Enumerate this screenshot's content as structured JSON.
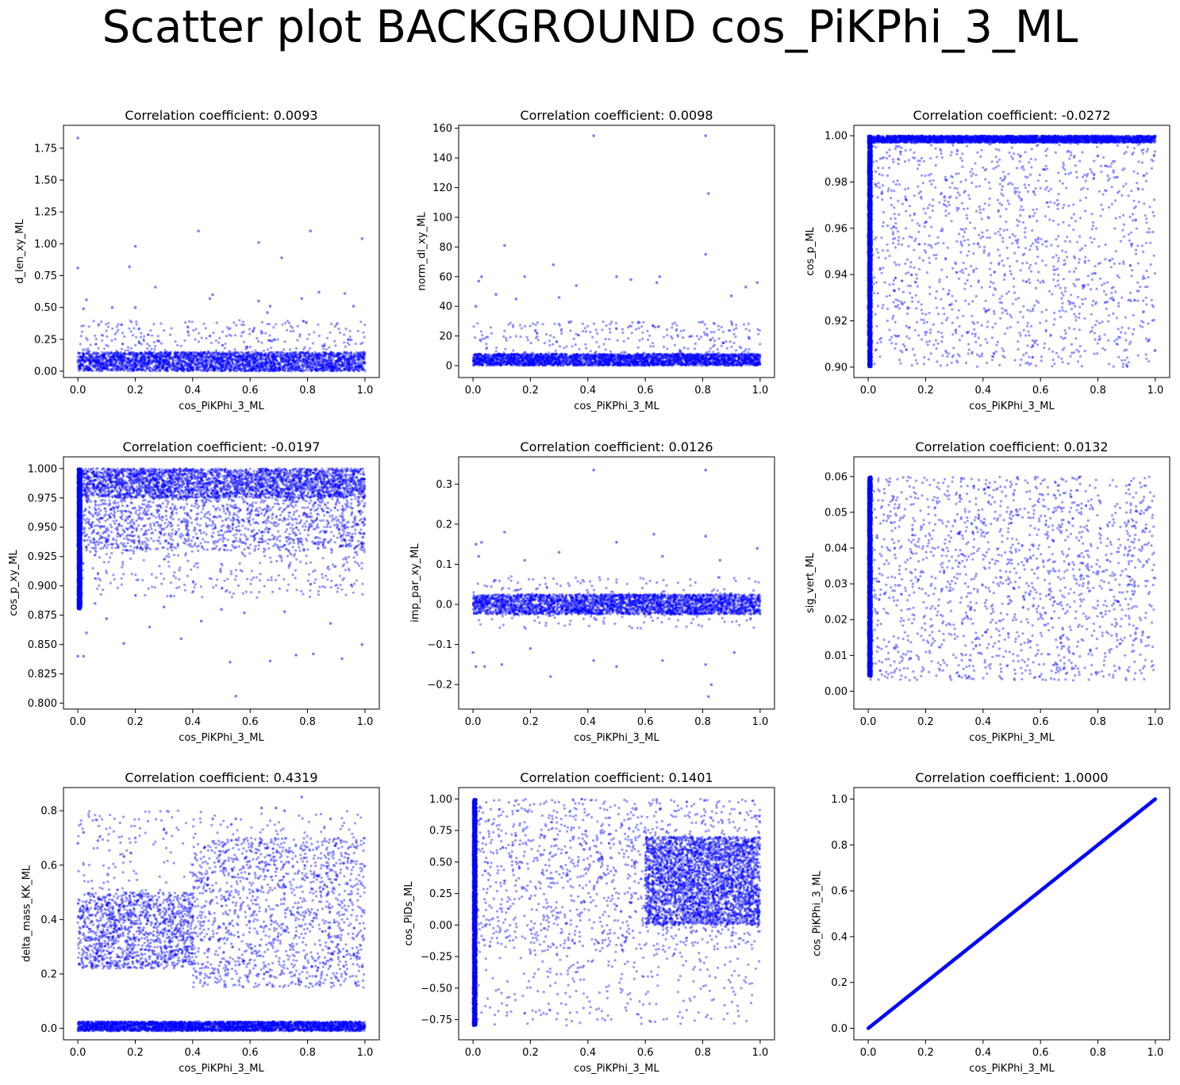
{
  "figure": {
    "title": "Scatter plot BACKGROUND cos_PiKPhi_3_ML",
    "point_color": "#0000ff",
    "point_alpha": 0.4
  },
  "chart_data": [
    {
      "type": "scatter",
      "title": "Correlation coefficient: 0.0093",
      "xlabel": "cos_PiKPhi_3_ML",
      "ylabel": "d_len_xy_ML",
      "xlim": [
        -0.05,
        1.05
      ],
      "ylim": [
        -0.05,
        1.93
      ],
      "xticks": [
        0.0,
        0.2,
        0.4,
        0.6,
        0.8,
        1.0
      ],
      "xtick_labels": [
        "0.0",
        "0.2",
        "0.4",
        "0.6",
        "0.8",
        "1.0"
      ],
      "yticks": [
        0.0,
        0.25,
        0.5,
        0.75,
        1.0,
        1.25,
        1.5,
        1.75
      ],
      "ytick_labels": [
        "0.00",
        "0.25",
        "0.50",
        "0.75",
        "1.00",
        "1.25",
        "1.50",
        "1.75"
      ],
      "bands": [
        {
          "x": [
            0.0,
            1.0
          ],
          "y": [
            0.0,
            0.15
          ],
          "density": "dense"
        },
        {
          "x": [
            0.0,
            1.0
          ],
          "y": [
            0.15,
            0.4
          ],
          "density": "sparse"
        }
      ],
      "points": [
        {
          "x": 0.0,
          "y": 1.83
        },
        {
          "x": 0.0,
          "y": 0.81
        },
        {
          "x": 0.18,
          "y": 0.82
        },
        {
          "x": 0.2,
          "y": 0.98
        },
        {
          "x": 0.42,
          "y": 1.1
        },
        {
          "x": 0.63,
          "y": 1.01
        },
        {
          "x": 0.71,
          "y": 0.89
        },
        {
          "x": 0.81,
          "y": 1.1
        },
        {
          "x": 0.99,
          "y": 1.04
        },
        {
          "x": 0.27,
          "y": 0.66
        },
        {
          "x": 0.47,
          "y": 0.6
        },
        {
          "x": 0.46,
          "y": 0.57
        },
        {
          "x": 0.63,
          "y": 0.55
        },
        {
          "x": 0.84,
          "y": 0.62
        },
        {
          "x": 0.93,
          "y": 0.61
        },
        {
          "x": 0.03,
          "y": 0.56
        },
        {
          "x": 0.02,
          "y": 0.49
        },
        {
          "x": 0.12,
          "y": 0.5
        },
        {
          "x": 0.2,
          "y": 0.5
        },
        {
          "x": 0.67,
          "y": 0.51
        },
        {
          "x": 0.78,
          "y": 0.57
        },
        {
          "x": 0.96,
          "y": 0.51
        },
        {
          "x": 0.66,
          "y": 0.46
        }
      ]
    },
    {
      "type": "scatter",
      "title": "Correlation coefficient: 0.0098",
      "xlabel": "cos_PiKPhi_3_ML",
      "ylabel": "norm_dl_xy_ML",
      "xlim": [
        -0.05,
        1.05
      ],
      "ylim": [
        -8,
        162
      ],
      "xticks": [
        0.0,
        0.2,
        0.4,
        0.6,
        0.8,
        1.0
      ],
      "xtick_labels": [
        "0.0",
        "0.2",
        "0.4",
        "0.6",
        "0.8",
        "1.0"
      ],
      "yticks": [
        0,
        20,
        40,
        60,
        80,
        100,
        120,
        140,
        160
      ],
      "ytick_labels": [
        "0",
        "20",
        "40",
        "60",
        "80",
        "100",
        "120",
        "140",
        "160"
      ],
      "bands": [
        {
          "x": [
            0.0,
            1.0
          ],
          "y": [
            0.0,
            8.0
          ],
          "density": "dense"
        },
        {
          "x": [
            0.0,
            1.0
          ],
          "y": [
            8.0,
            30.0
          ],
          "density": "sparse"
        }
      ],
      "points": [
        {
          "x": 0.42,
          "y": 155
        },
        {
          "x": 0.81,
          "y": 155
        },
        {
          "x": 0.82,
          "y": 116
        },
        {
          "x": 0.11,
          "y": 81
        },
        {
          "x": 0.81,
          "y": 75
        },
        {
          "x": 0.28,
          "y": 68
        },
        {
          "x": 0.02,
          "y": 57
        },
        {
          "x": 0.03,
          "y": 60
        },
        {
          "x": 0.18,
          "y": 60
        },
        {
          "x": 0.5,
          "y": 60
        },
        {
          "x": 0.65,
          "y": 60
        },
        {
          "x": 0.99,
          "y": 56
        },
        {
          "x": 0.55,
          "y": 58
        },
        {
          "x": 0.36,
          "y": 54
        },
        {
          "x": 0.08,
          "y": 48
        },
        {
          "x": 0.95,
          "y": 53
        },
        {
          "x": 0.64,
          "y": 56
        },
        {
          "x": 0.01,
          "y": 40
        },
        {
          "x": 0.15,
          "y": 45
        },
        {
          "x": 0.3,
          "y": 46
        },
        {
          "x": 0.9,
          "y": 47
        }
      ]
    },
    {
      "type": "scatter",
      "title": "Correlation coefficient: -0.0272",
      "xlabel": "cos_PiKPhi_3_ML",
      "ylabel": "cos_p_ML",
      "xlim": [
        -0.05,
        1.05
      ],
      "ylim": [
        0.8955,
        1.0045
      ],
      "xticks": [
        0.0,
        0.2,
        0.4,
        0.6,
        0.8,
        1.0
      ],
      "xtick_labels": [
        "0.0",
        "0.2",
        "0.4",
        "0.6",
        "0.8",
        "1.0"
      ],
      "yticks": [
        0.9,
        0.92,
        0.94,
        0.96,
        0.98,
        1.0
      ],
      "ytick_labels": [
        "0.90",
        "0.92",
        "0.94",
        "0.96",
        "0.98",
        "1.00"
      ],
      "bands": [
        {
          "x": [
            0.0,
            1.0
          ],
          "y": [
            0.9,
            1.0
          ],
          "density": "medium"
        },
        {
          "x": [
            0.0,
            0.012
          ],
          "y": [
            0.9,
            1.0
          ],
          "density": "dense"
        },
        {
          "x": [
            0.0,
            1.0
          ],
          "y": [
            0.997,
            1.0
          ],
          "density": "dense"
        }
      ],
      "points": []
    },
    {
      "type": "scatter",
      "title": "Correlation coefficient: -0.0197",
      "xlabel": "cos_PiKPhi_3_ML",
      "ylabel": "cos_p_xy_ML",
      "xlim": [
        -0.05,
        1.05
      ],
      "ylim": [
        0.795,
        1.01
      ],
      "xticks": [
        0.0,
        0.2,
        0.4,
        0.6,
        0.8,
        1.0
      ],
      "xtick_labels": [
        "0.0",
        "0.2",
        "0.4",
        "0.6",
        "0.8",
        "1.0"
      ],
      "yticks": [
        0.8,
        0.825,
        0.85,
        0.875,
        0.9,
        0.925,
        0.95,
        0.975,
        1.0
      ],
      "ytick_labels": [
        "0.800",
        "0.825",
        "0.850",
        "0.875",
        "0.900",
        "0.925",
        "0.950",
        "0.975",
        "1.000"
      ],
      "bands": [
        {
          "x": [
            0.0,
            1.0
          ],
          "y": [
            0.975,
            1.0
          ],
          "density": "dense"
        },
        {
          "x": [
            0.0,
            1.0
          ],
          "y": [
            0.93,
            0.975
          ],
          "density": "medium"
        },
        {
          "x": [
            0.0,
            1.0
          ],
          "y": [
            0.89,
            0.93
          ],
          "density": "sparse"
        },
        {
          "x": [
            0.0,
            0.012
          ],
          "y": [
            0.88,
            1.0
          ],
          "density": "dense"
        }
      ],
      "points": [
        {
          "x": 0.55,
          "y": 0.806
        },
        {
          "x": 0.53,
          "y": 0.835
        },
        {
          "x": 0.02,
          "y": 0.84
        },
        {
          "x": 0.0,
          "y": 0.84
        },
        {
          "x": 0.67,
          "y": 0.836
        },
        {
          "x": 0.76,
          "y": 0.841
        },
        {
          "x": 0.92,
          "y": 0.838
        },
        {
          "x": 0.16,
          "y": 0.851
        },
        {
          "x": 0.36,
          "y": 0.855
        },
        {
          "x": 0.82,
          "y": 0.842
        },
        {
          "x": 0.99,
          "y": 0.85
        },
        {
          "x": 0.03,
          "y": 0.86
        },
        {
          "x": 0.25,
          "y": 0.865
        },
        {
          "x": 0.43,
          "y": 0.87
        },
        {
          "x": 0.58,
          "y": 0.877
        },
        {
          "x": 0.1,
          "y": 0.872
        },
        {
          "x": 0.88,
          "y": 0.868
        },
        {
          "x": 0.5,
          "y": 0.88
        },
        {
          "x": 0.72,
          "y": 0.878
        },
        {
          "x": 0.06,
          "y": 0.885
        },
        {
          "x": 0.3,
          "y": 0.882
        }
      ]
    },
    {
      "type": "scatter",
      "title": "Correlation coefficient: 0.0126",
      "xlabel": "cos_PiKPhi_3_ML",
      "ylabel": "imp_par_xy_ML",
      "xlim": [
        -0.05,
        1.05
      ],
      "ylim": [
        -0.261,
        0.368
      ],
      "xticks": [
        0.0,
        0.2,
        0.4,
        0.6,
        0.8,
        1.0
      ],
      "xtick_labels": [
        "0.0",
        "0.2",
        "0.4",
        "0.6",
        "0.8",
        "1.0"
      ],
      "yticks": [
        -0.2,
        -0.1,
        0.0,
        0.1,
        0.2,
        0.3
      ],
      "ytick_labels": [
        "−0.2",
        "−0.1",
        "0.0",
        "0.1",
        "0.2",
        "0.3"
      ],
      "bands": [
        {
          "x": [
            0.0,
            1.0
          ],
          "y": [
            -0.025,
            0.025
          ],
          "density": "dense"
        },
        {
          "x": [
            0.0,
            1.0
          ],
          "y": [
            -0.06,
            0.07
          ],
          "density": "sparse"
        }
      ],
      "points": [
        {
          "x": 0.42,
          "y": 0.335
        },
        {
          "x": 0.81,
          "y": 0.335
        },
        {
          "x": 0.11,
          "y": 0.18
        },
        {
          "x": 0.63,
          "y": 0.175
        },
        {
          "x": 0.81,
          "y": 0.17
        },
        {
          "x": 0.5,
          "y": 0.155
        },
        {
          "x": 0.03,
          "y": 0.155
        },
        {
          "x": 0.01,
          "y": 0.15
        },
        {
          "x": 0.99,
          "y": 0.14
        },
        {
          "x": 0.3,
          "y": 0.13
        },
        {
          "x": 0.18,
          "y": 0.11
        },
        {
          "x": 0.66,
          "y": 0.12
        },
        {
          "x": 0.86,
          "y": 0.11
        },
        {
          "x": 0.02,
          "y": 0.12
        },
        {
          "x": 0.27,
          "y": -0.18
        },
        {
          "x": 0.82,
          "y": -0.23
        },
        {
          "x": 0.83,
          "y": -0.2
        },
        {
          "x": 0.04,
          "y": -0.155
        },
        {
          "x": 0.01,
          "y": -0.155
        },
        {
          "x": 0.5,
          "y": -0.155
        },
        {
          "x": 0.81,
          "y": -0.15
        },
        {
          "x": 0.1,
          "y": -0.15
        },
        {
          "x": 0.2,
          "y": -0.11
        },
        {
          "x": 0.42,
          "y": -0.14
        },
        {
          "x": 0.66,
          "y": -0.14
        },
        {
          "x": 0.91,
          "y": -0.12
        },
        {
          "x": 0.0,
          "y": -0.12
        }
      ]
    },
    {
      "type": "scatter",
      "title": "Correlation coefficient: 0.0132",
      "xlabel": "cos_PiKPhi_3_ML",
      "ylabel": "sig_vert_ML",
      "xlim": [
        -0.05,
        1.05
      ],
      "ylim": [
        -0.005,
        0.0655
      ],
      "xticks": [
        0.0,
        0.2,
        0.4,
        0.6,
        0.8,
        1.0
      ],
      "xtick_labels": [
        "0.0",
        "0.2",
        "0.4",
        "0.6",
        "0.8",
        "1.0"
      ],
      "yticks": [
        0.0,
        0.01,
        0.02,
        0.03,
        0.04,
        0.05,
        0.06
      ],
      "ytick_labels": [
        "0.00",
        "0.01",
        "0.02",
        "0.03",
        "0.04",
        "0.05",
        "0.06"
      ],
      "bands": [
        {
          "x": [
            0.0,
            1.0
          ],
          "y": [
            0.012,
            0.06
          ],
          "density": "medium"
        },
        {
          "x": [
            0.0,
            1.0
          ],
          "y": [
            0.003,
            0.012
          ],
          "density": "sparse"
        },
        {
          "x": [
            0.0,
            0.012
          ],
          "y": [
            0.004,
            0.06
          ],
          "density": "dense"
        }
      ],
      "points": []
    },
    {
      "type": "scatter",
      "title": "Correlation coefficient: 0.4319",
      "xlabel": "cos_PiKPhi_3_ML",
      "ylabel": "delta_mass_KK_ML",
      "xlim": [
        -0.05,
        1.05
      ],
      "ylim": [
        -0.042,
        0.885
      ],
      "xticks": [
        0.0,
        0.2,
        0.4,
        0.6,
        0.8,
        1.0
      ],
      "xtick_labels": [
        "0.0",
        "0.2",
        "0.4",
        "0.6",
        "0.8",
        "1.0"
      ],
      "yticks": [
        0.0,
        0.2,
        0.4,
        0.6,
        0.8
      ],
      "ytick_labels": [
        "0.0",
        "0.2",
        "0.4",
        "0.6",
        "0.8"
      ],
      "bands": [
        {
          "x": [
            0.0,
            1.0
          ],
          "y": [
            -0.01,
            0.025
          ],
          "density": "dense"
        },
        {
          "x": [
            0.0,
            0.4
          ],
          "y": [
            0.22,
            0.5
          ],
          "density": "medium"
        },
        {
          "x": [
            0.4,
            1.0
          ],
          "y": [
            0.15,
            0.7
          ],
          "density": "medium"
        },
        {
          "x": [
            0.0,
            1.0
          ],
          "y": [
            0.5,
            0.8
          ],
          "density": "sparse"
        }
      ],
      "points": [
        {
          "x": 0.78,
          "y": 0.85
        },
        {
          "x": 0.64,
          "y": 0.81
        },
        {
          "x": 0.72,
          "y": 0.8
        },
        {
          "x": 0.69,
          "y": 0.81
        },
        {
          "x": 0.47,
          "y": 0.77
        },
        {
          "x": 0.55,
          "y": 0.77
        },
        {
          "x": 0.0,
          "y": 0.68
        },
        {
          "x": 0.02,
          "y": 0.72
        },
        {
          "x": 0.07,
          "y": 0.69
        },
        {
          "x": 0.2,
          "y": 0.7
        },
        {
          "x": 0.3,
          "y": 0.73
        },
        {
          "x": 0.88,
          "y": 0.77
        }
      ]
    },
    {
      "type": "scatter",
      "title": "Correlation coefficient: 0.1401",
      "xlabel": "cos_PiKPhi_3_ML",
      "ylabel": "cos_PiDs_ML",
      "xlim": [
        -0.05,
        1.05
      ],
      "ylim": [
        -0.91,
        1.09
      ],
      "xticks": [
        0.0,
        0.2,
        0.4,
        0.6,
        0.8,
        1.0
      ],
      "xtick_labels": [
        "0.0",
        "0.2",
        "0.4",
        "0.6",
        "0.8",
        "1.0"
      ],
      "yticks": [
        -0.75,
        -0.5,
        -0.25,
        0.0,
        0.25,
        0.5,
        0.75,
        1.0
      ],
      "ytick_labels": [
        "−0.75",
        "−0.50",
        "−0.25",
        "0.00",
        "0.25",
        "0.50",
        "0.75",
        "1.00"
      ],
      "bands": [
        {
          "x": [
            0.0,
            1.0
          ],
          "y": [
            -0.2,
            1.0
          ],
          "density": "medium"
        },
        {
          "x": [
            0.0,
            1.0
          ],
          "y": [
            -0.8,
            -0.2
          ],
          "density": "sparse"
        },
        {
          "x": [
            0.0,
            0.012
          ],
          "y": [
            -0.8,
            1.0
          ],
          "density": "dense"
        },
        {
          "x": [
            0.6,
            1.0
          ],
          "y": [
            0.0,
            0.7
          ],
          "density": "dense"
        }
      ],
      "points": []
    },
    {
      "type": "scatter",
      "title": "Correlation coefficient: 1.0000",
      "xlabel": "cos_PiKPhi_3_ML",
      "ylabel": "cos_PiKPhi_3_ML",
      "xlim": [
        -0.05,
        1.05
      ],
      "ylim": [
        -0.05,
        1.05
      ],
      "xticks": [
        0.0,
        0.2,
        0.4,
        0.6,
        0.8,
        1.0
      ],
      "xtick_labels": [
        "0.0",
        "0.2",
        "0.4",
        "0.6",
        "0.8",
        "1.0"
      ],
      "yticks": [
        0.0,
        0.2,
        0.4,
        0.6,
        0.8,
        1.0
      ],
      "ytick_labels": [
        "0.0",
        "0.2",
        "0.4",
        "0.6",
        "0.8",
        "1.0"
      ],
      "bands": [],
      "line": {
        "x": [
          0.0,
          1.0
        ],
        "y": [
          0.0,
          1.0
        ]
      },
      "points": []
    }
  ]
}
